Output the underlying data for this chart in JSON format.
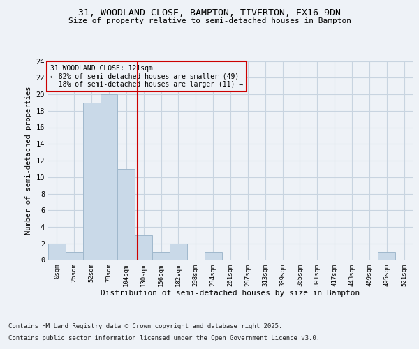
{
  "title1": "31, WOODLAND CLOSE, BAMPTON, TIVERTON, EX16 9DN",
  "title2": "Size of property relative to semi-detached houses in Bampton",
  "xlabel": "Distribution of semi-detached houses by size in Bampton",
  "ylabel": "Number of semi-detached properties",
  "bin_labels": [
    "0sqm",
    "26sqm",
    "52sqm",
    "78sqm",
    "104sqm",
    "130sqm",
    "156sqm",
    "182sqm",
    "208sqm",
    "234sqm",
    "261sqm",
    "287sqm",
    "313sqm",
    "339sqm",
    "365sqm",
    "391sqm",
    "417sqm",
    "443sqm",
    "469sqm",
    "495sqm",
    "521sqm"
  ],
  "bar_values": [
    2,
    1,
    19,
    20,
    11,
    3,
    1,
    2,
    0,
    1,
    0,
    0,
    0,
    0,
    0,
    0,
    0,
    0,
    0,
    1,
    0
  ],
  "bar_color": "#c9d9e8",
  "bar_edge_color": "#a0b8cc",
  "property_label": "31 WOODLAND CLOSE: 121sqm",
  "pct_smaller": 82,
  "pct_smaller_n": 49,
  "pct_larger": 18,
  "pct_larger_n": 11,
  "vline_color": "#cc0000",
  "annotation_box_color": "#cc0000",
  "ylim": [
    0,
    24
  ],
  "yticks": [
    0,
    2,
    4,
    6,
    8,
    10,
    12,
    14,
    16,
    18,
    20,
    22,
    24
  ],
  "footnote1": "Contains HM Land Registry data © Crown copyright and database right 2025.",
  "footnote2": "Contains public sector information licensed under the Open Government Licence v3.0.",
  "bg_color": "#eef2f7",
  "grid_color": "#c8d4e0"
}
